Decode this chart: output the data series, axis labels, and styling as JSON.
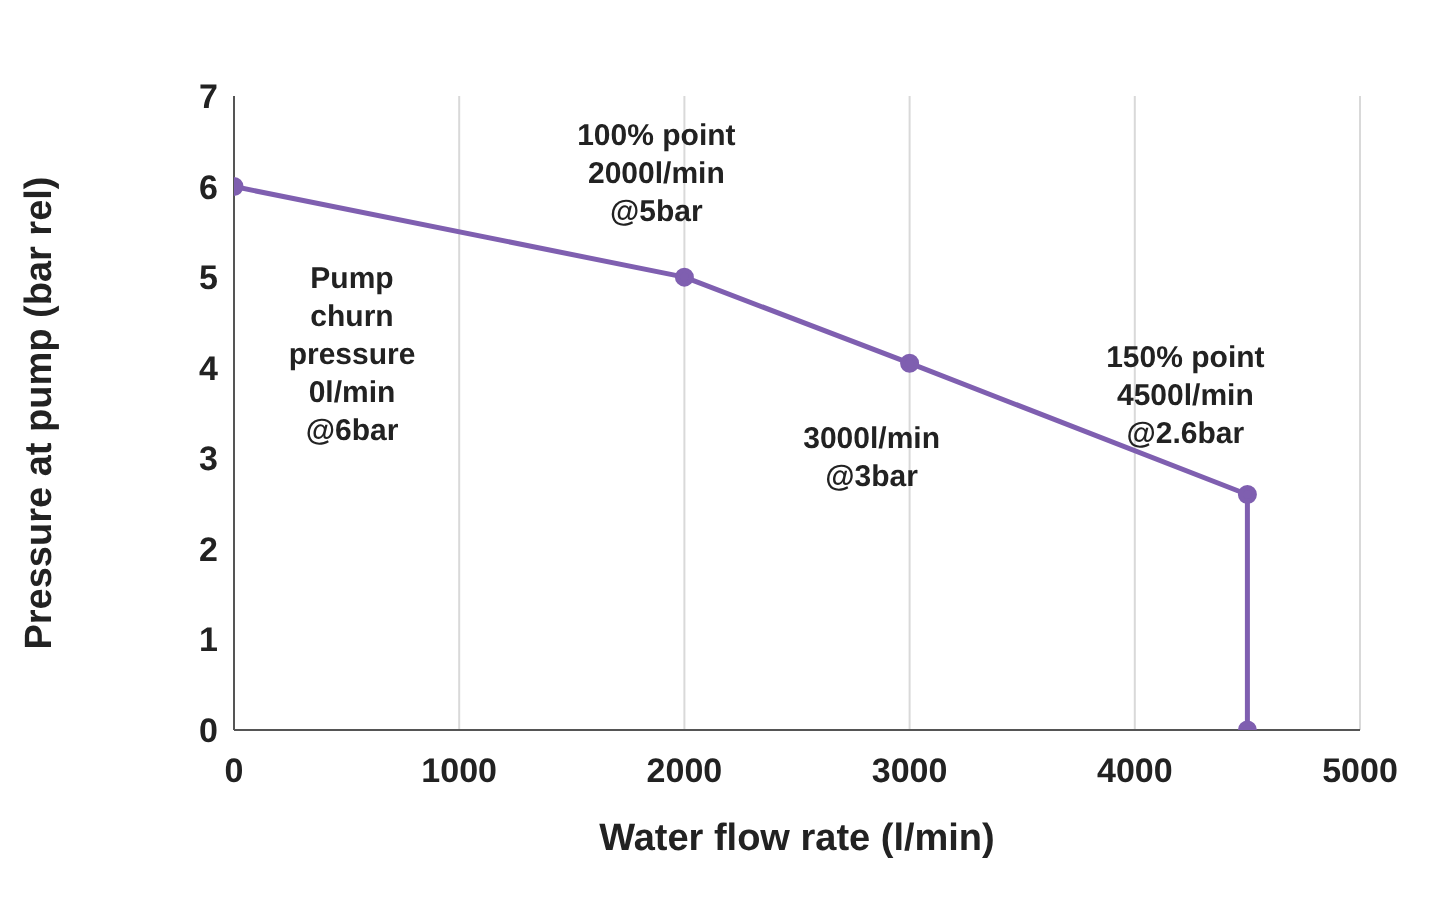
{
  "chart_data": {
    "type": "line",
    "xlabel": "Water flow rate (l/min)",
    "ylabel": "Pressure at pump (bar rel)",
    "x": [
      0,
      2000,
      3000,
      4500,
      4500
    ],
    "series": [
      {
        "color": "#7f5fb0",
        "values": [
          6,
          5,
          4.05,
          2.6,
          0
        ]
      }
    ],
    "xlim": [
      0,
      5000
    ],
    "xticks": [
      0,
      1000,
      2000,
      3000,
      4000,
      5000
    ],
    "ylim": [
      0,
      7
    ],
    "yticks": [
      0,
      1,
      2,
      3,
      4,
      5,
      6,
      7
    ],
    "grid": "x",
    "marker": "circle",
    "line_style": "solid",
    "annotations": [
      "Pump\nchurn\npressure\n0l/min\n@6bar",
      {
        "text": "100% point\n2000l/min\n@5bar",
        "x": 2000,
        "y": 5
      },
      {
        "text": "3000l/min\n@3bar",
        "x": 3000,
        "y": 4.05
      },
      {
        "text": "150% point\n4500l/min\n@2.6bar",
        "x": 4500,
        "y": 2.6
      }
    ]
  }
}
